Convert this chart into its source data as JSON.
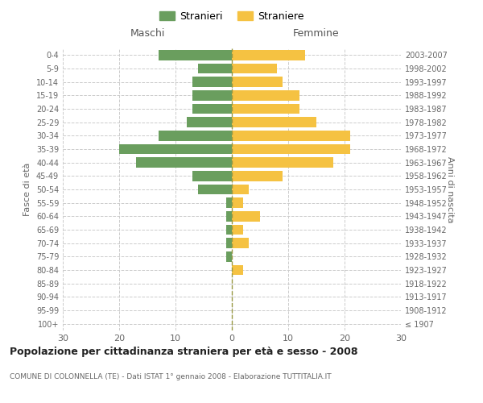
{
  "age_groups": [
    "100+",
    "95-99",
    "90-94",
    "85-89",
    "80-84",
    "75-79",
    "70-74",
    "65-69",
    "60-64",
    "55-59",
    "50-54",
    "45-49",
    "40-44",
    "35-39",
    "30-34",
    "25-29",
    "20-24",
    "15-19",
    "10-14",
    "5-9",
    "0-4"
  ],
  "birth_years": [
    "≤ 1907",
    "1908-1912",
    "1913-1917",
    "1918-1922",
    "1923-1927",
    "1928-1932",
    "1933-1937",
    "1938-1942",
    "1943-1947",
    "1948-1952",
    "1953-1957",
    "1958-1962",
    "1963-1967",
    "1968-1972",
    "1973-1977",
    "1978-1982",
    "1983-1987",
    "1988-1992",
    "1993-1997",
    "1998-2002",
    "2003-2007"
  ],
  "males": [
    0,
    0,
    0,
    0,
    0,
    1,
    1,
    1,
    1,
    1,
    6,
    7,
    17,
    20,
    13,
    8,
    7,
    7,
    7,
    6,
    13
  ],
  "females": [
    0,
    0,
    0,
    0,
    2,
    0,
    3,
    2,
    5,
    2,
    3,
    9,
    18,
    21,
    21,
    15,
    12,
    12,
    9,
    8,
    13
  ],
  "male_color": "#6a9e5e",
  "female_color": "#f5c242",
  "background_color": "#ffffff",
  "grid_color": "#cccccc",
  "title": "Popolazione per cittadinanza straniera per età e sesso - 2008",
  "subtitle": "COMUNE DI COLONNELLA (TE) - Dati ISTAT 1° gennaio 2008 - Elaborazione TUTTITALIA.IT",
  "xlabel_left": "Maschi",
  "xlabel_right": "Femmine",
  "ylabel_left": "Fasce di età",
  "ylabel_right": "Anni di nascita",
  "xlim": 30,
  "legend_male": "Stranieri",
  "legend_female": "Straniere"
}
